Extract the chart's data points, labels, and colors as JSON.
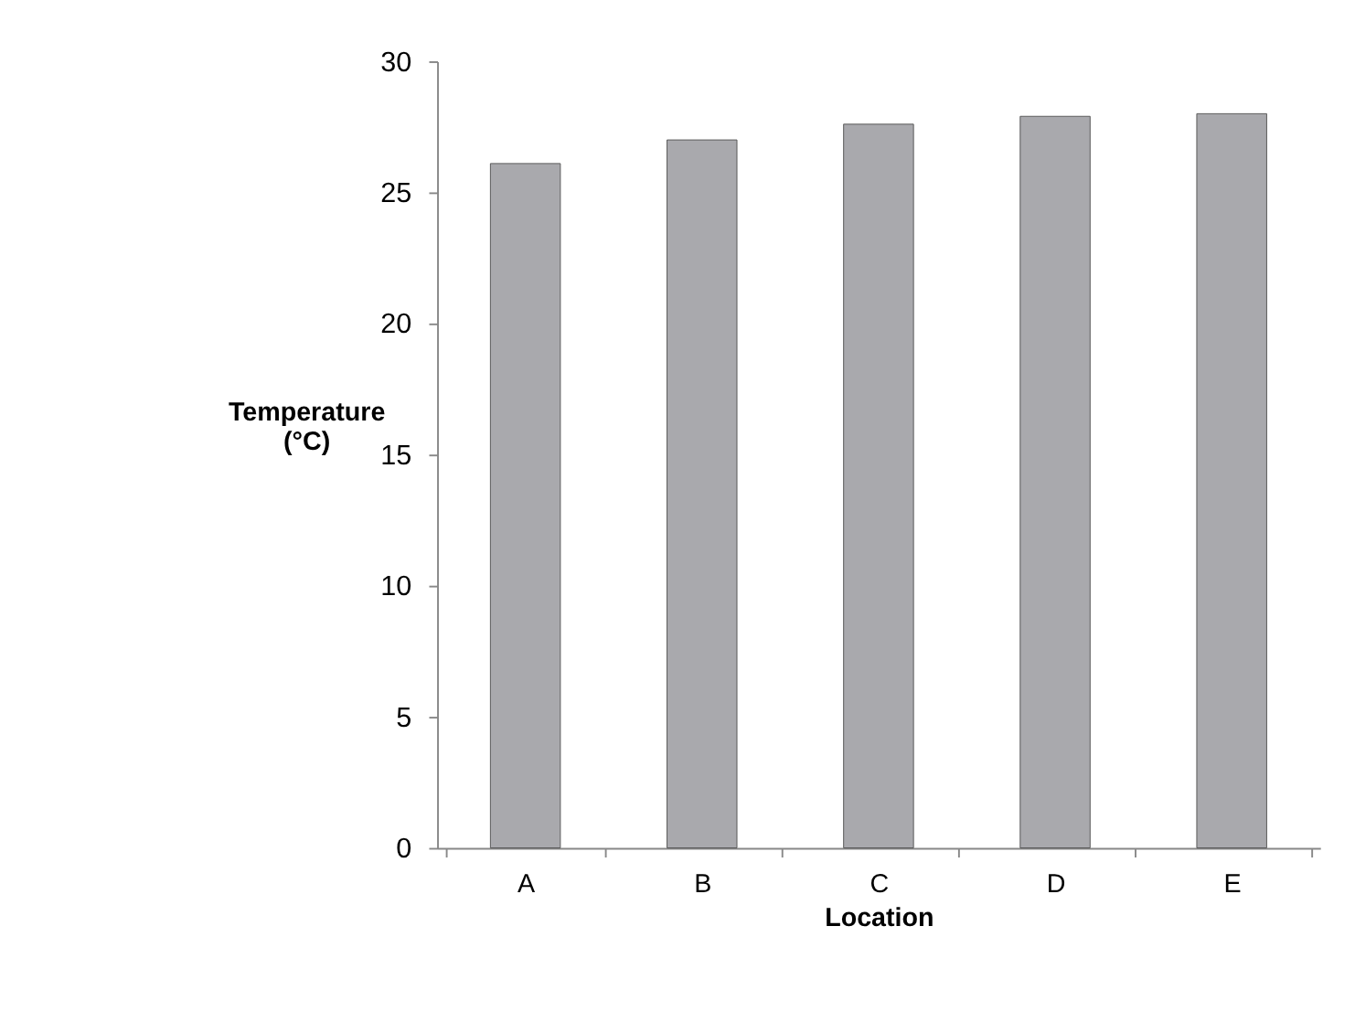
{
  "chart_data": {
    "type": "bar",
    "xlabel": "Location",
    "ylabel": "Temperature\n(°C)",
    "categories": [
      "A",
      "B",
      "C",
      "D",
      "E"
    ],
    "values": [
      26.1,
      27.0,
      27.6,
      27.9,
      28.0
    ],
    "color": "#a9a9ad",
    "ylim": [
      0,
      30
    ],
    "yticks": [
      0,
      5,
      10,
      15,
      20,
      25,
      30
    ],
    "grid": false
  }
}
